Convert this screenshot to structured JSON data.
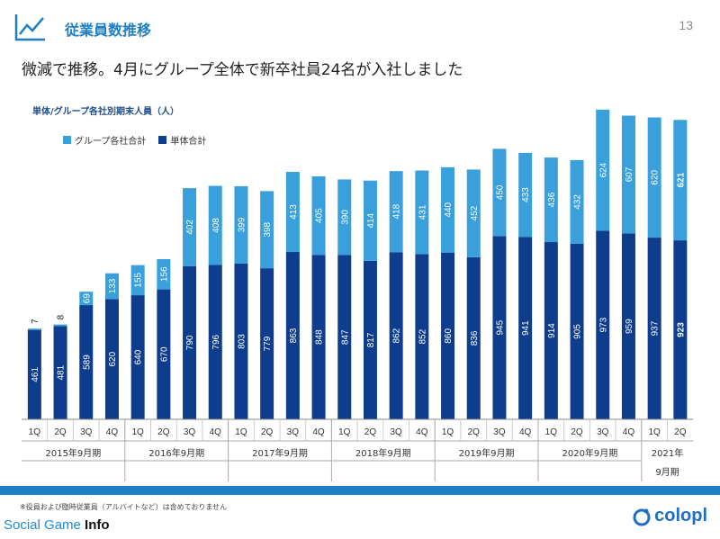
{
  "header": {
    "title": "従業員数推移",
    "page_number": "13"
  },
  "subtitle": "微減で推移。4月にグループ全体で新卒社員24名が入社しました",
  "footnote": "※役員および臨時従業員（アルバイトなど）は含めておりません",
  "brand": {
    "social": "Social Game ",
    "info": "Info"
  },
  "logo": {
    "text": "colopl",
    "icon": "colopl-logo-icon"
  },
  "colors": {
    "accent": "#1e7fc4",
    "group": "#39a0dc",
    "single": "#0e3d8e"
  },
  "chart_data": {
    "type": "bar",
    "stacked": true,
    "title": "単体/グループ各社別期末人員（人）",
    "legend": [
      "グループ各社合計",
      "単体合計"
    ],
    "legend_position": "top-left",
    "categories": [
      "1Q",
      "2Q",
      "3Q",
      "4Q",
      "1Q",
      "2Q",
      "3Q",
      "4Q",
      "1Q",
      "2Q",
      "3Q",
      "4Q",
      "1Q",
      "2Q",
      "3Q",
      "4Q",
      "1Q",
      "2Q",
      "3Q",
      "4Q",
      "1Q",
      "2Q",
      "3Q",
      "4Q",
      "1Q",
      "2Q"
    ],
    "periods": [
      {
        "label": "2015年9月期",
        "count": 4
      },
      {
        "label": "2016年9月期",
        "count": 4
      },
      {
        "label": "2017年9月期",
        "count": 4
      },
      {
        "label": "2018年9月期",
        "count": 4
      },
      {
        "label": "2019年9月期",
        "count": 4
      },
      {
        "label": "2020年9月期",
        "count": 4
      },
      {
        "label": "2021年",
        "label2": "9月期",
        "count": 2
      }
    ],
    "series": [
      {
        "name": "単体合計",
        "values": [
          461,
          481,
          589,
          620,
          640,
          670,
          790,
          796,
          803,
          779,
          863,
          848,
          847,
          817,
          862,
          852,
          860,
          836,
          945,
          941,
          914,
          905,
          973,
          959,
          937,
          923
        ]
      },
      {
        "name": "グループ各社合計",
        "values": [
          7,
          8,
          69,
          133,
          155,
          156,
          402,
          408,
          399,
          398,
          413,
          405,
          390,
          414,
          418,
          431,
          440,
          452,
          450,
          433,
          436,
          432,
          624,
          607,
          620,
          621
        ]
      }
    ],
    "highlight_last": true,
    "grid": false
  }
}
